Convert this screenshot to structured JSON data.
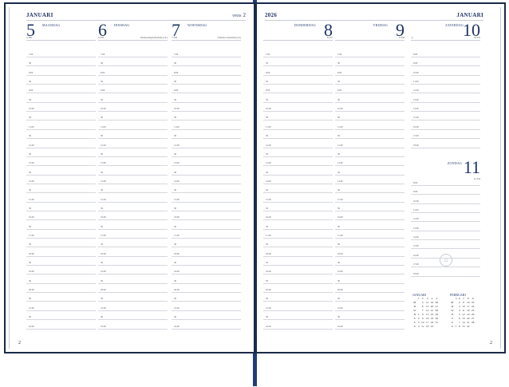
{
  "left_page": {
    "month": "JANUARI",
    "week_label": "WEEK",
    "week_number": "2",
    "page_number": "2",
    "days": [
      {
        "number": "5",
        "name": "MAANDAG",
        "day_of_year": "5-360",
        "note": ""
      },
      {
        "number": "6",
        "name": "DINSDAG",
        "day_of_year": "6-359",
        "note": "Driekoningen/Epifanie (ch.)"
      },
      {
        "number": "7",
        "name": "WOENSDAG",
        "day_of_year": "7-358",
        "note": "Orthodox Kerstmis (ch.)"
      }
    ]
  },
  "right_page": {
    "year": "2026",
    "month": "JANUARI",
    "page_number": "2",
    "days": [
      {
        "number": "8",
        "name": "DONDERDAG",
        "day_of_year": "8-357",
        "note": ""
      },
      {
        "number": "9",
        "name": "VRIJDAG",
        "day_of_year": "9-356",
        "note": ""
      },
      {
        "number": "10",
        "name": "ZATERDAG",
        "day_of_year": "10-355",
        "note": "§"
      },
      {
        "number": "11",
        "name": "ZONDAG",
        "day_of_year": "11-354",
        "note": ""
      }
    ]
  },
  "weekday_slots": [
    "7.00",
    "30",
    "8.00",
    "30",
    "9.00",
    "30",
    "10.00",
    "30",
    "11.00",
    "30",
    "12.00",
    "30",
    "13.00",
    "30",
    "14.00",
    "30",
    "15.00",
    "30",
    "16.00",
    "30",
    "17.00",
    "30",
    "18.00",
    "30",
    "19.00",
    "30",
    "20.00",
    "30",
    "21.00",
    "30",
    "22.00"
  ],
  "weekend_slots": [
    "8.00",
    "9.00",
    "10.00",
    "11.00",
    "12.00",
    "13.00",
    "14.00",
    "15.00",
    "16.00",
    "17.00",
    "18.00"
  ],
  "mini_calendars": [
    {
      "title": "JANUARI",
      "weeks": [
        "1",
        "2",
        "3",
        "4",
        "5"
      ],
      "rows": [
        [
          "M",
          "",
          "5",
          "12",
          "19",
          "26"
        ],
        [
          "D",
          "",
          "6",
          "13",
          "20",
          "27"
        ],
        [
          "W",
          "",
          "7",
          "14",
          "21",
          "28"
        ],
        [
          "D",
          "1",
          "8",
          "15",
          "22",
          "29"
        ],
        [
          "V",
          "2",
          "9",
          "16",
          "23",
          "30"
        ],
        [
          "Z",
          "3",
          "10",
          "17",
          "24",
          "31"
        ],
        [
          "Z",
          "4",
          "11",
          "18",
          "25",
          ""
        ]
      ]
    },
    {
      "title": "FEBRUARI",
      "weeks": [
        "5",
        "6",
        "7",
        "8",
        "9"
      ],
      "rows": [
        [
          "M",
          "",
          "2",
          "9",
          "16",
          "23"
        ],
        [
          "D",
          "",
          "3",
          "10",
          "17",
          "24"
        ],
        [
          "W",
          "",
          "4",
          "11",
          "18",
          "25"
        ],
        [
          "D",
          "",
          "5",
          "12",
          "19",
          "26"
        ],
        [
          "V",
          "",
          "6",
          "13",
          "20",
          "27"
        ],
        [
          "Z",
          "",
          "7",
          "14",
          "21",
          "28"
        ],
        [
          "Z",
          "1",
          "8",
          "15",
          "22",
          ""
        ]
      ]
    }
  ],
  "colors": {
    "navy": "#1e3d78",
    "text": "#1f3466"
  }
}
